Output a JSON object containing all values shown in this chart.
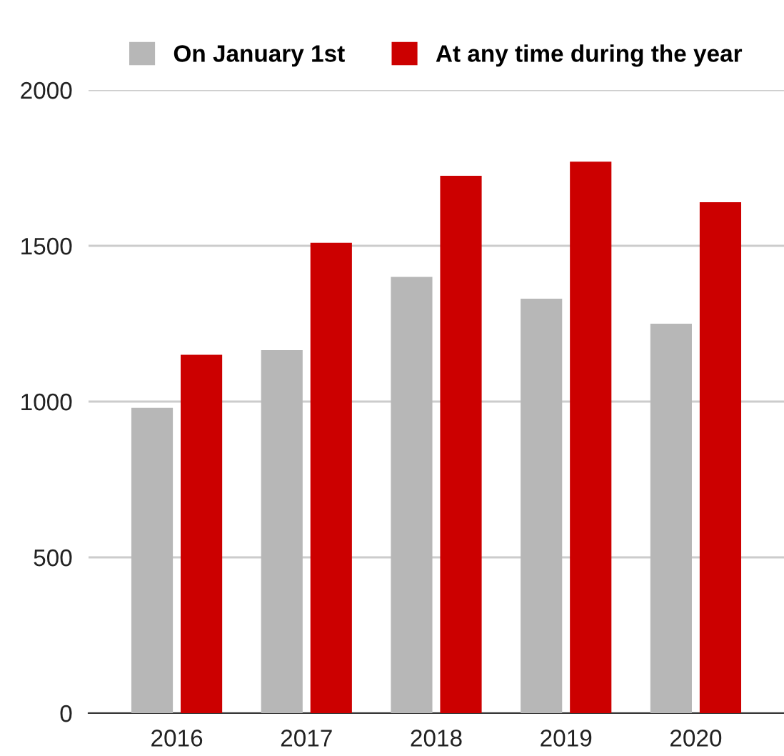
{
  "chart_data": {
    "type": "bar",
    "categories": [
      "2016",
      "2017",
      "2018",
      "2019",
      "2020"
    ],
    "series": [
      {
        "name": "On January 1st",
        "color": "#b7b7b7",
        "values": [
          980,
          1165,
          1400,
          1330,
          1250
        ]
      },
      {
        "name": "At any time during the year",
        "color": "#cc0000",
        "values": [
          1150,
          1510,
          1725,
          1770,
          1640
        ]
      }
    ],
    "ylim": [
      0,
      2000
    ],
    "yticks": [
      0,
      500,
      1000,
      1500,
      2000
    ],
    "grid": "y",
    "legend": "top"
  }
}
